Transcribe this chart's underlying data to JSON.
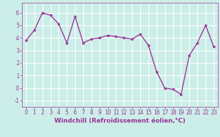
{
  "x": [
    0,
    1,
    2,
    3,
    4,
    5,
    6,
    7,
    8,
    9,
    10,
    11,
    12,
    13,
    14,
    15,
    16,
    17,
    18,
    19,
    20,
    21,
    22,
    23
  ],
  "y": [
    3.8,
    4.6,
    6.0,
    5.8,
    5.1,
    3.6,
    5.7,
    3.6,
    3.9,
    4.0,
    4.2,
    4.1,
    4.0,
    3.9,
    4.3,
    3.4,
    1.3,
    0.0,
    -0.1,
    -0.5,
    2.6,
    3.6,
    5.0,
    3.3
  ],
  "line_color": "#993399",
  "marker": "*",
  "marker_size": 3,
  "xlabel": "Windchill (Refroidissement éolien,°C)",
  "xlabel_fontsize": 6.5,
  "bg_color": "#cceee8",
  "grid_color": "#ffffff",
  "ylim": [
    -1.5,
    6.8
  ],
  "xlim": [
    -0.5,
    23.5
  ],
  "yticks": [
    -1,
    0,
    1,
    2,
    3,
    4,
    5,
    6
  ],
  "xticks": [
    0,
    1,
    2,
    3,
    4,
    5,
    6,
    7,
    8,
    9,
    10,
    11,
    12,
    13,
    14,
    15,
    16,
    17,
    18,
    19,
    20,
    21,
    22,
    23
  ],
  "tick_fontsize": 5.5,
  "linewidth": 1.0
}
